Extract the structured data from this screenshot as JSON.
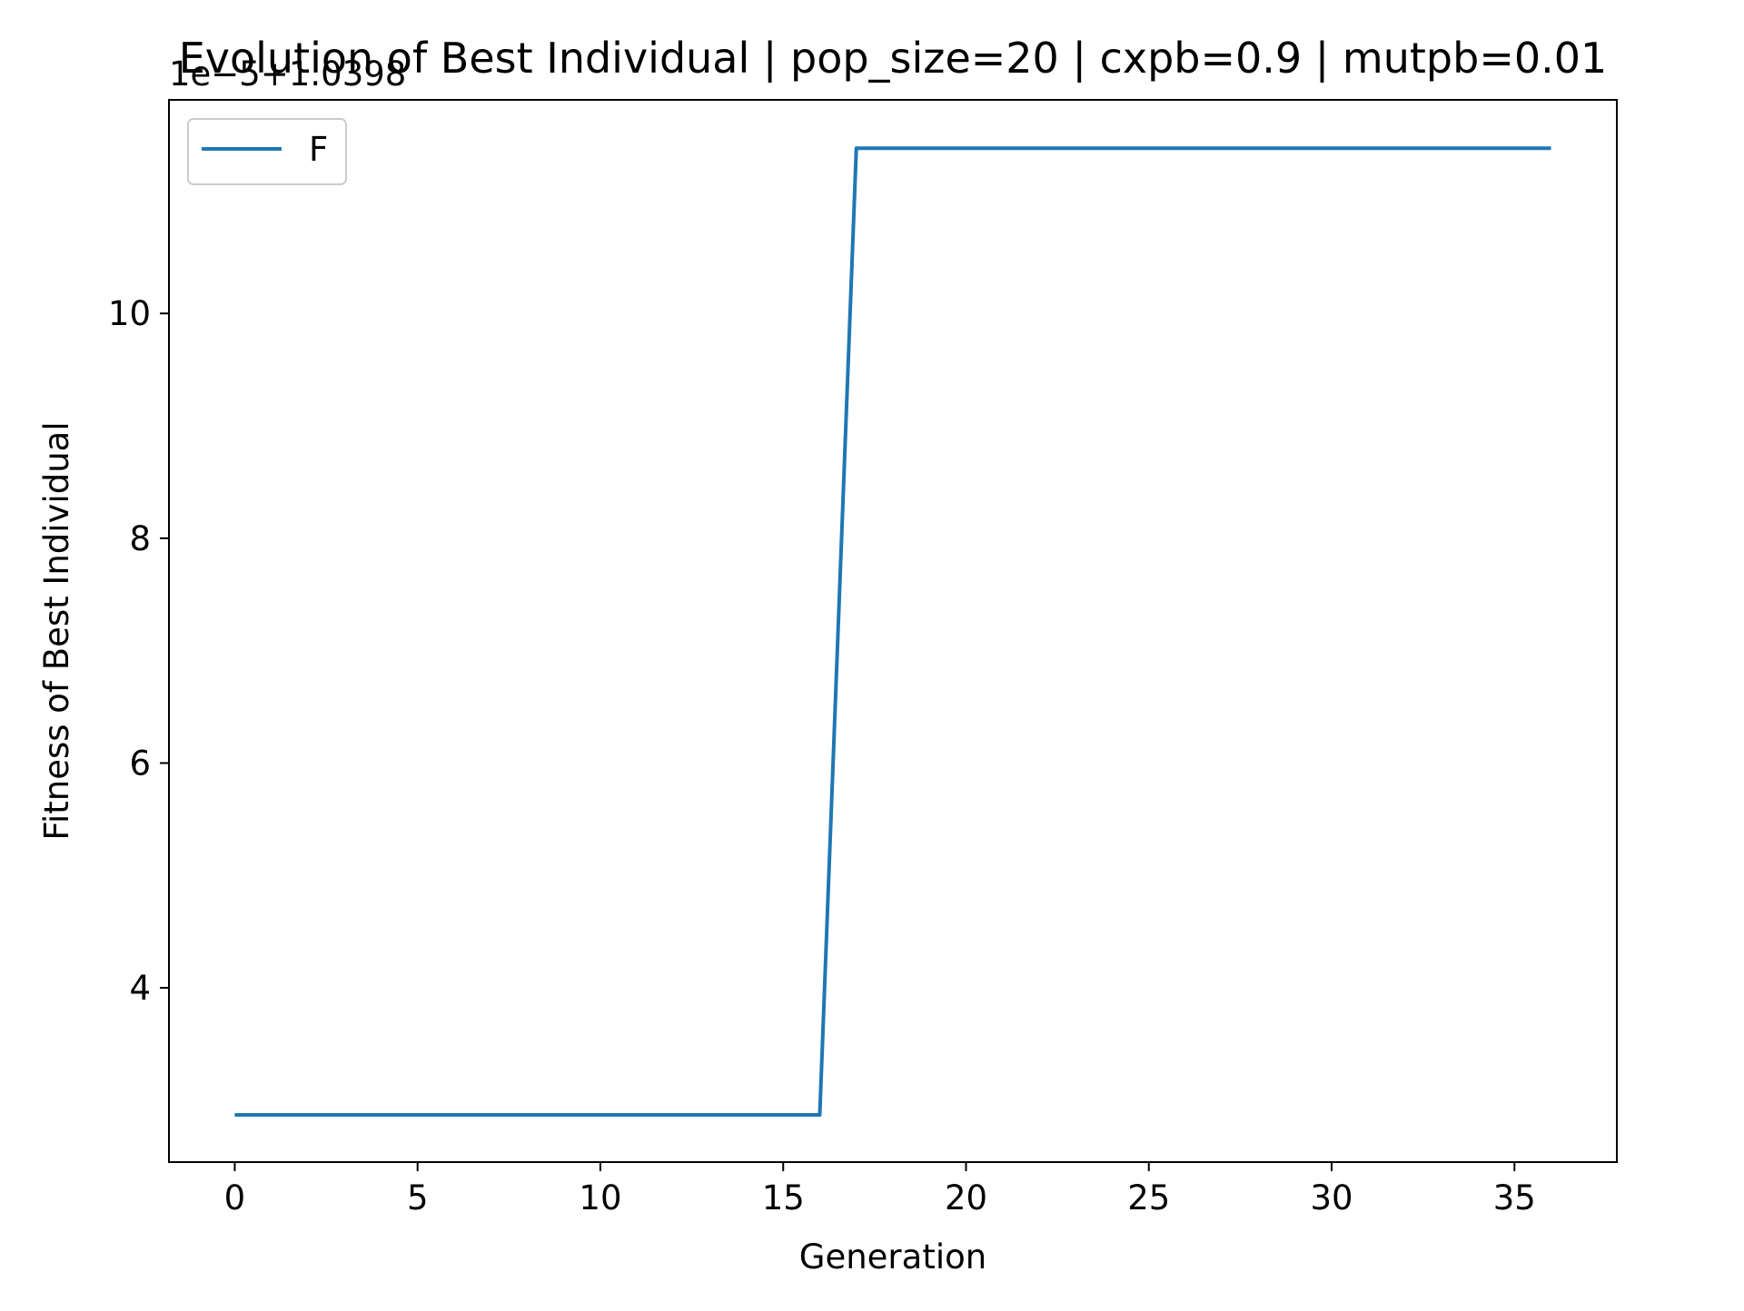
{
  "chart_data": {
    "type": "line",
    "title": "Evolution of Best Individual | pop_size=20 | cxpb=0.9 | mutpb=0.01",
    "xlabel": "Generation",
    "ylabel": "Fitness of Best Individual",
    "offset_label": "1e−5+1.0398",
    "xlim": [
      -1.8,
      37.8
    ],
    "ylim": [
      2.45,
      11.9
    ],
    "xticks": [
      0,
      5,
      10,
      15,
      20,
      25,
      30,
      35
    ],
    "yticks": [
      4,
      6,
      8,
      10
    ],
    "grid": false,
    "legend_position": "upper-left",
    "series": [
      {
        "name": "F",
        "color": "#1f77b4",
        "x": [
          0,
          1,
          2,
          3,
          4,
          5,
          6,
          7,
          8,
          9,
          10,
          11,
          12,
          13,
          14,
          15,
          16,
          17,
          18,
          19,
          20,
          21,
          22,
          23,
          24,
          25,
          26,
          27,
          28,
          29,
          30,
          31,
          32,
          33,
          34,
          35,
          36
        ],
        "y": [
          2.87,
          2.87,
          2.87,
          2.87,
          2.87,
          2.87,
          2.87,
          2.87,
          2.87,
          2.87,
          2.87,
          2.87,
          2.87,
          2.87,
          2.87,
          2.87,
          2.87,
          11.47,
          11.47,
          11.47,
          11.47,
          11.47,
          11.47,
          11.47,
          11.47,
          11.47,
          11.47,
          11.47,
          11.47,
          11.47,
          11.47,
          11.47,
          11.47,
          11.47,
          11.47,
          11.47,
          11.47
        ]
      }
    ]
  }
}
